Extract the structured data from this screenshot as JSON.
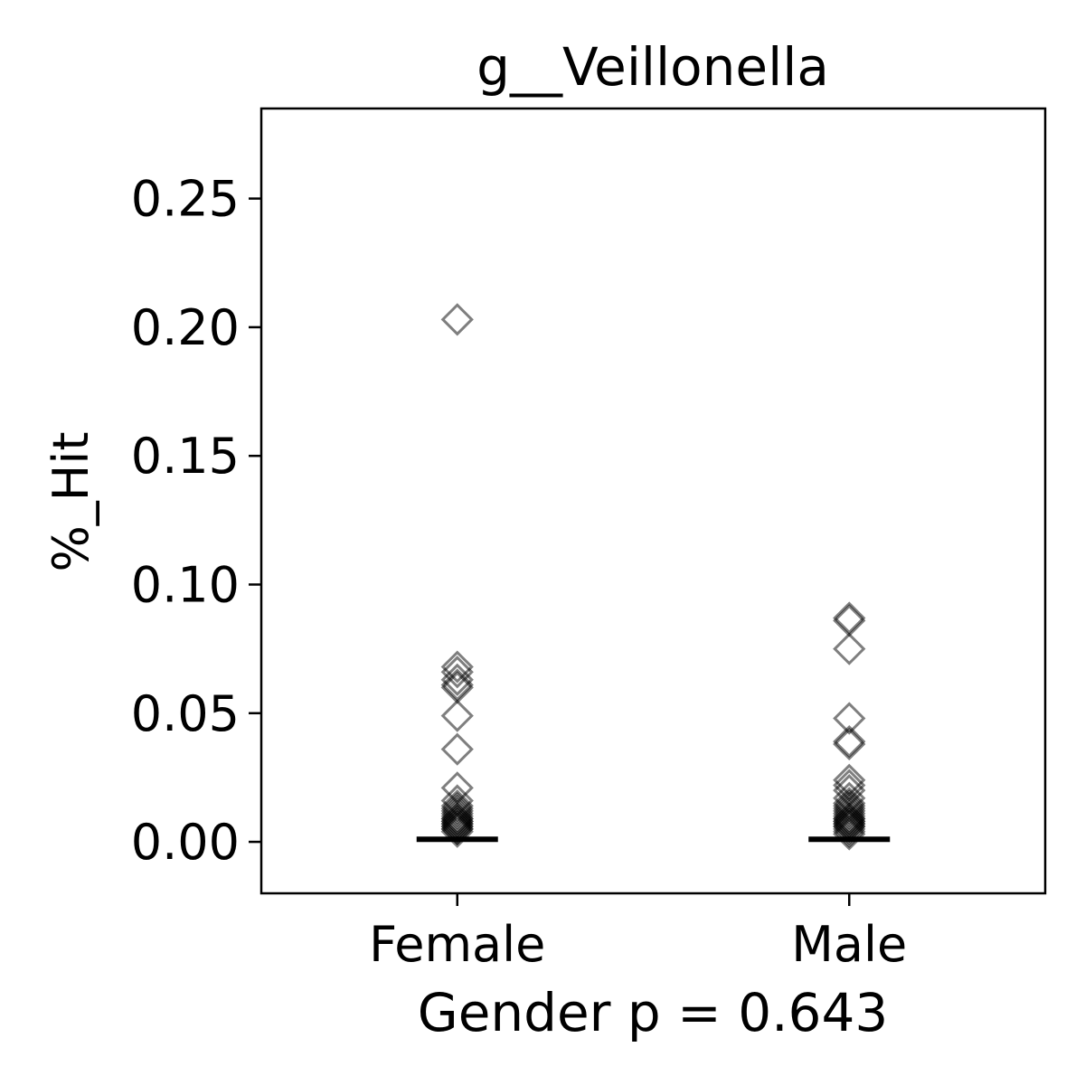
{
  "chart_data": {
    "type": "scatter",
    "title": "g__Veillonella",
    "xlabel": "Gender p = 0.643",
    "ylabel": "%_Hit",
    "categories": [
      "Female",
      "Male"
    ],
    "ylim": [
      -0.02,
      0.285
    ],
    "yticks": [
      "0.00",
      "0.05",
      "0.10",
      "0.15",
      "0.20",
      "0.25"
    ],
    "grid": false,
    "marker": "open-diamond",
    "marker_color": "#000000",
    "marker_alpha": 0.5,
    "series": [
      {
        "category": "Female",
        "values": [
          0.203,
          0.068,
          0.066,
          0.063,
          0.061,
          0.06,
          0.049,
          0.036,
          0.021,
          0.016,
          0.014,
          0.013,
          0.012,
          0.011,
          0.01,
          0.009,
          0.009,
          0.008,
          0.008,
          0.007,
          0.007,
          0.006,
          0.006,
          0.005,
          0.005,
          0.004
        ],
        "median": 0.001
      },
      {
        "category": "Male",
        "values": [
          0.087,
          0.086,
          0.075,
          0.048,
          0.039,
          0.038,
          0.024,
          0.022,
          0.02,
          0.017,
          0.015,
          0.014,
          0.013,
          0.012,
          0.011,
          0.01,
          0.009,
          0.009,
          0.008,
          0.008,
          0.007,
          0.007,
          0.006,
          0.006,
          0.005,
          0.004,
          0.003
        ],
        "median": 0.001
      }
    ]
  }
}
